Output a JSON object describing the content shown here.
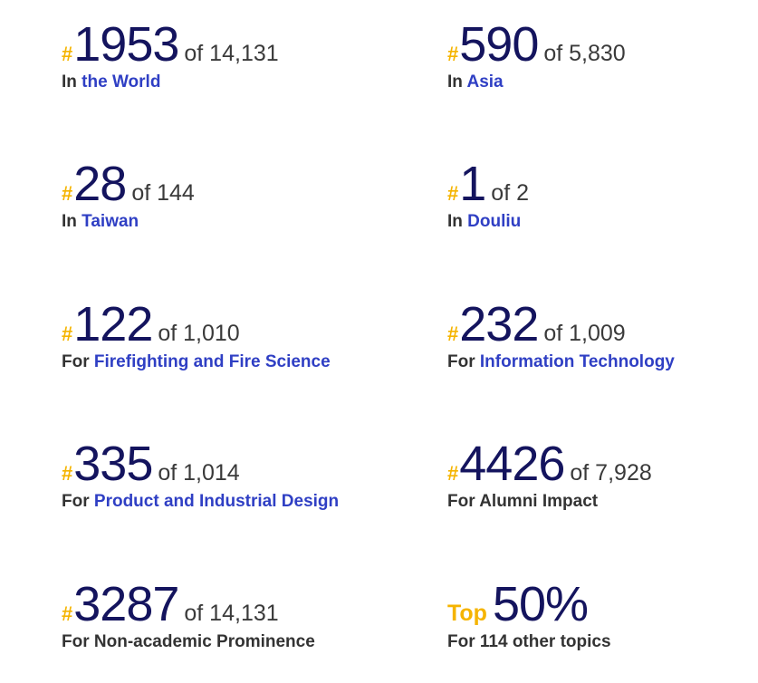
{
  "rankings": [
    {
      "rank": "1953",
      "total": "of 14,131",
      "prefix": "In",
      "link": "the World"
    },
    {
      "rank": "590",
      "total": "of 5,830",
      "prefix": "In",
      "link": "Asia"
    },
    {
      "rank": "28",
      "total": "of 144",
      "prefix": "In",
      "link": "Taiwan"
    },
    {
      "rank": "1",
      "total": "of 2",
      "prefix": "In",
      "link": "Douliu"
    },
    {
      "rank": "122",
      "total": "of 1,010",
      "prefix": "For",
      "link": "Firefighting and Fire Science"
    },
    {
      "rank": "232",
      "total": "of 1,009",
      "prefix": "For",
      "link": "Information Technology"
    },
    {
      "rank": "335",
      "total": "of 1,014",
      "prefix": "For",
      "link": "Product and Industrial Design"
    },
    {
      "rank": "4426",
      "total": "of 7,928",
      "prefix": "For",
      "text": "Alumni Impact"
    },
    {
      "rank": "3287",
      "total": "of 14,131",
      "prefix": "For",
      "text": "Non-academic Prominence"
    },
    {
      "top_label": "Top",
      "rank": "50%",
      "text": "For 114 other topics"
    }
  ],
  "hash_symbol": "#",
  "colors": {
    "hash": "#f5b400",
    "rank_number": "#14145e",
    "link": "#2f3fc4",
    "text": "#333333"
  }
}
